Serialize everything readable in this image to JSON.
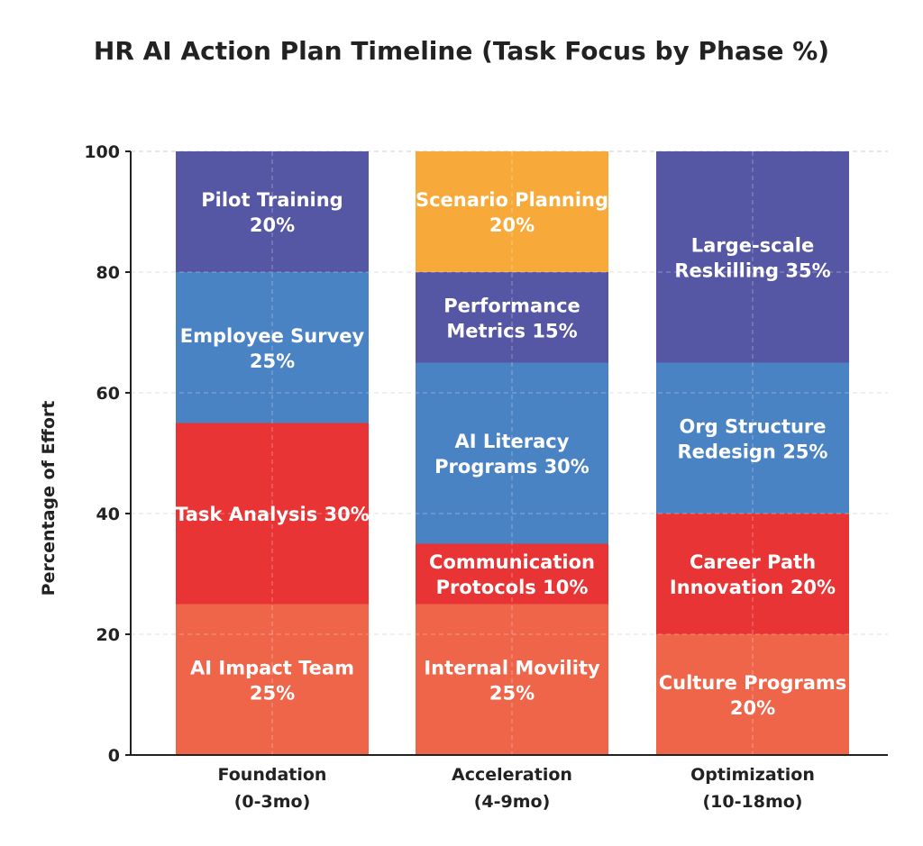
{
  "chart_data": {
    "type": "bar",
    "stacked": true,
    "title": "HR AI Action Plan Timeline (Task Focus by Phase %)",
    "xlabel": "",
    "ylabel": "Percentage of Effort",
    "ylim": [
      0,
      100
    ],
    "yticks": [
      0,
      20,
      40,
      60,
      80,
      100
    ],
    "grid": true,
    "categories": [
      "Foundation\n(0-3mo)",
      "Acceleration\n(4-9mo)",
      "Optimization\n(10-18mo)"
    ],
    "segments": [
      [
        {
          "label": "AI Impact Team 25%",
          "value": 25,
          "color": "#EE654A"
        },
        {
          "label": "Task Analysis 30%",
          "value": 30,
          "color": "#E83434"
        },
        {
          "label": "Employee Survey 25%",
          "value": 25,
          "color": "#4A83C3"
        },
        {
          "label": "Pilot Training 20%",
          "value": 20,
          "color": "#5556A4"
        }
      ],
      [
        {
          "label": "Internal Movility 25%",
          "value": 25,
          "color": "#EE654A"
        },
        {
          "label": "Communication Protocols 10%",
          "value": 10,
          "color": "#E83434"
        },
        {
          "label": "AI Literacy Programs 30%",
          "value": 30,
          "color": "#4A83C3"
        },
        {
          "label": "Performance Metrics 15%",
          "value": 15,
          "color": "#5556A4"
        },
        {
          "label": "Scenario Planning 20%",
          "value": 20,
          "color": "#F7A93A"
        }
      ],
      [
        {
          "label": "Culture Programs 20%",
          "value": 20,
          "color": "#EE654A"
        },
        {
          "label": "Career Path Innovation 20%",
          "value": 20,
          "color": "#E83434"
        },
        {
          "label": "Org Structure Redesign 25%",
          "value": 25,
          "color": "#4A83C3"
        },
        {
          "label": "Large-scale Reskilling 35%",
          "value": 35,
          "color": "#5556A4"
        }
      ]
    ]
  }
}
